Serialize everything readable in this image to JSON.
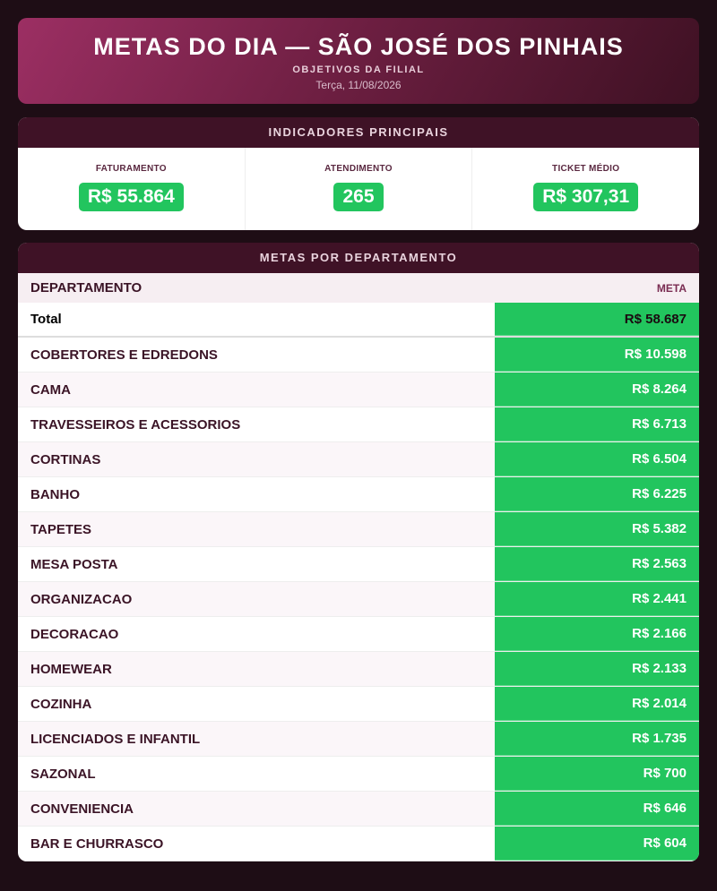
{
  "header": {
    "title": "METAS DO DIA — SÃO JOSÉ DOS PINHAIS",
    "subtitle": "OBJETIVOS DA FILIAL",
    "date": "Terça, 11/08/2026"
  },
  "indicators": {
    "title": "INDICADORES PRINCIPAIS",
    "items": [
      {
        "label": "FATURAMENTO",
        "value": "R$ 55.864"
      },
      {
        "label": "ATENDIMENTO",
        "value": "265"
      },
      {
        "label": "TICKET MÉDIO",
        "value": "R$ 307,31"
      }
    ]
  },
  "table": {
    "title": "METAS POR DEPARTAMENTO",
    "columns": [
      "DEPARTAMENTO",
      "META"
    ],
    "total": [
      "Total",
      "R$ 58.687"
    ],
    "rows": [
      [
        "COBERTORES E EDREDONS",
        "R$ 10.598"
      ],
      [
        "CAMA",
        "R$ 8.264"
      ],
      [
        "TRAVESSEIROS E ACESSORIOS",
        "R$ 6.713"
      ],
      [
        "CORTINAS",
        "R$ 6.504"
      ],
      [
        "BANHO",
        "R$ 6.225"
      ],
      [
        "TAPETES",
        "R$ 5.382"
      ],
      [
        "MESA POSTA",
        "R$ 2.563"
      ],
      [
        "ORGANIZACAO",
        "R$ 2.441"
      ],
      [
        "DECORACAO",
        "R$ 2.166"
      ],
      [
        "HOMEWEAR",
        "R$ 2.133"
      ],
      [
        "COZINHA",
        "R$ 2.014"
      ],
      [
        "LICENCIADOS E INFANTIL",
        "R$ 1.735"
      ],
      [
        "SAZONAL",
        "R$ 700"
      ],
      [
        "CONVENIENCIA",
        "R$ 646"
      ],
      [
        "BAR E CHURRASCO",
        "R$ 604"
      ]
    ]
  }
}
